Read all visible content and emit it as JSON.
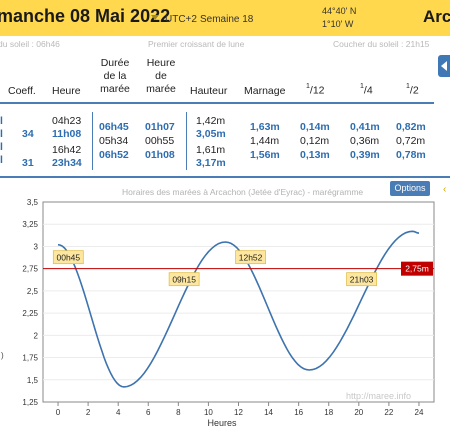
{
  "header": {
    "title": "manche 08 Mai 2022",
    "timezone": "UTC+2",
    "week": "Semaine 18",
    "lat": "44°40' N",
    "lon": "1°10' W",
    "right_text": "Arca"
  },
  "subline": {
    "sunrise": "du soleil : 06h46",
    "moon": "Premier croissant de lune",
    "sunset": "Coucher du soleil : 21h15"
  },
  "table": {
    "headers": {
      "coeff": "Coeff.",
      "heure": "Heure",
      "duree_1": "Durée",
      "duree_2": "de la",
      "duree_3": "marée",
      "heure_maree_1": "Heure",
      "heure_maree_2": "de",
      "heure_maree_3": "marée",
      "hauteur": "Hauteur",
      "marnage": "Marnage",
      "f12_num": "1",
      "f12_den": "/12",
      "f4_num": "1",
      "f4_den": "/4",
      "f2_num": "1",
      "f2_den": "/2"
    },
    "stubs": [
      "l",
      "l",
      "l",
      "l"
    ],
    "coeffs": [
      "34",
      "31"
    ],
    "heures": [
      "04h23",
      "11h08",
      "16h42",
      "23h34"
    ],
    "durees": [
      "06h45",
      "05h34",
      "06h52"
    ],
    "heures_maree": [
      "01h07",
      "00h55",
      "01h08"
    ],
    "hauteurs": [
      "1,42m",
      "3,05m",
      "1,61m",
      "3,17m"
    ],
    "marnages": [
      "1,63m",
      "1,44m",
      "1,56m"
    ],
    "twelfths": [
      "0,14m",
      "0,12m",
      "0,13m"
    ],
    "quarters": [
      "0,41m",
      "0,36m",
      "0,39m"
    ],
    "halves": [
      "0,82m",
      "0,72m",
      "0,78m"
    ]
  },
  "chart_header": {
    "title": "Horaires des marées à Arcachon (Jetée d'Eyrac) - marégramme",
    "options_label": "Options"
  },
  "chart_data": {
    "type": "line",
    "title": "Horaires des marées à Arcachon (Jetée d'Eyrac) - marégramme",
    "xlabel": "Heures",
    "ylabel": "",
    "xlim": [
      -1,
      25
    ],
    "ylim": [
      1.25,
      3.5
    ],
    "x_ticks": [
      0,
      2,
      4,
      6,
      8,
      10,
      12,
      14,
      16,
      18,
      20,
      22,
      24
    ],
    "y_ticks": [
      "1,25",
      "1,5",
      "1,75",
      "2",
      "2,25",
      "2,5",
      "2,75",
      "3",
      "3,25",
      "3,5"
    ],
    "y_tick_values": [
      1.25,
      1.5,
      1.75,
      2,
      2.25,
      2.5,
      2.75,
      3,
      3.25,
      3.5
    ],
    "extremes": [
      {
        "x": 0,
        "y": 3.02
      },
      {
        "x": 4.38,
        "y": 1.42
      },
      {
        "x": 11.13,
        "y": 3.05
      },
      {
        "x": 16.7,
        "y": 1.61
      },
      {
        "x": 23.57,
        "y": 3.17
      },
      {
        "x": 24,
        "y": 3.15
      }
    ],
    "threshold": {
      "value": 2.75,
      "label": "2,75m",
      "color": "#c00000"
    },
    "crossings": [
      {
        "x": 0.75,
        "label": "00h45"
      },
      {
        "x": 9.25,
        "label": "09h15"
      },
      {
        "x": 12.87,
        "label": "12h52"
      },
      {
        "x": 21.05,
        "label": "21h03"
      }
    ],
    "line_color": "#3d73ae",
    "watermark": "http://maree.info",
    "y_side_mark": ")"
  }
}
